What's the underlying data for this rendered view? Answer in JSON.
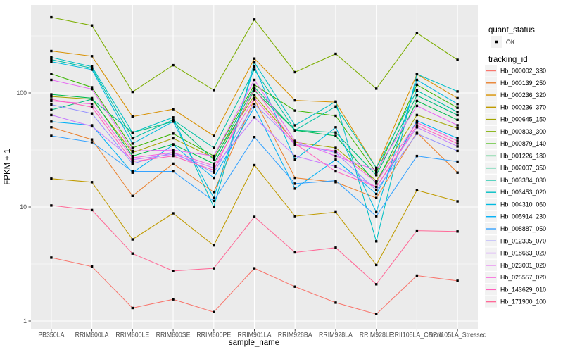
{
  "figure": {
    "panel_bg": "#EBEBEB",
    "grid_color": "#FFFFFF",
    "tick_color": "#333333",
    "tick_text_color": "#4D4D4D",
    "point_color": "#000000",
    "legend_key_bg": "#F2F2F2"
  },
  "chart_data": {
    "type": "line",
    "title": "",
    "xlabel": "sample_name",
    "ylabel": "FPKM + 1",
    "y_scale": "log10",
    "ylim": [
      0.9,
      610
    ],
    "grid": true,
    "legend_position": "right",
    "point_marker": "black-square",
    "y_tick_values": [
      1,
      10,
      100
    ],
    "y_tick_labels": [
      "1",
      "10",
      "100"
    ],
    "y_minor_values": [
      3.1623,
      31.623,
      316.23
    ],
    "categories": [
      "PB350LA",
      "RRIM600LA",
      "RRIM600LE",
      "RRIM600SE",
      "RRIM600PE",
      "RRIM901LA",
      "RRIM928BA",
      "RRIM928LA",
      "RRIM928LE",
      "RRII105LA_Control",
      "RRII105LA_Stressed"
    ],
    "series": [
      {
        "name": "Hb_000002_330",
        "color": "#F8766D",
        "values": [
          3.6,
          3.0,
          1.3,
          1.55,
          1.2,
          2.9,
          2.0,
          1.45,
          1.15,
          2.5,
          2.25
        ]
      },
      {
        "name": "Hb_000139_250",
        "color": "#EA8331",
        "values": [
          50,
          39,
          12.5,
          24,
          13.5,
          88,
          18,
          16.5,
          12,
          45,
          20
        ]
      },
      {
        "name": "Hb_000236_320",
        "color": "#D89000",
        "values": [
          233,
          210,
          62,
          72,
          42,
          200,
          86,
          83,
          22,
          146,
          90
        ]
      },
      {
        "name": "Hb_000236_370",
        "color": "#C09B00",
        "values": [
          17.7,
          16.5,
          5.2,
          8.8,
          4.6,
          23.3,
          8.3,
          9.0,
          3.1,
          14,
          11.2
        ]
      },
      {
        "name": "Hb_000645_150",
        "color": "#A3A500",
        "values": [
          93,
          88,
          30,
          40,
          27,
          95,
          37,
          33,
          17,
          64,
          49
        ]
      },
      {
        "name": "Hb_000803_300",
        "color": "#7CAE00",
        "values": [
          460,
          390,
          102,
          175,
          106,
          440,
          152,
          220,
          109,
          335,
          195
        ]
      },
      {
        "name": "Hb_000879_140",
        "color": "#39B600",
        "values": [
          147,
          112,
          33,
          44,
          28,
          118,
          70,
          63,
          20,
          118,
          74
        ]
      },
      {
        "name": "Hb_001226_180",
        "color": "#00BB4E",
        "values": [
          97,
          90,
          28,
          35.5,
          24,
          105,
          47,
          42,
          16,
          85,
          58
        ]
      },
      {
        "name": "Hb_002007_350",
        "color": "#00BF7D",
        "values": [
          71,
          88,
          45,
          56,
          26,
          112,
          47,
          45,
          19,
          95,
          64
        ]
      },
      {
        "name": "Hb_003384_030",
        "color": "#00C1A3",
        "values": [
          196,
          165,
          40,
          58,
          33,
          160,
          47,
          76,
          22,
          105,
          68
        ]
      },
      {
        "name": "Hb_003453_020",
        "color": "#00BFC4",
        "values": [
          205,
          170,
          45,
          61,
          10,
          185,
          52,
          84,
          5,
          146,
          103
        ]
      },
      {
        "name": "Hb_004310_060",
        "color": "#00BAE0",
        "values": [
          188,
          160,
          36,
          56,
          12,
          170,
          26,
          50,
          9,
          130,
          80
        ]
      },
      {
        "name": "Hb_005914_230",
        "color": "#00B0F6",
        "values": [
          56,
          52,
          20,
          35,
          18,
          75,
          14.5,
          26,
          13,
          57,
          40
        ]
      },
      {
        "name": "Hb_008887_050",
        "color": "#35A2FF",
        "values": [
          42,
          37,
          20.5,
          20.5,
          11.3,
          41,
          16,
          17,
          8.3,
          28,
          25
        ]
      },
      {
        "name": "Hb_012305_070",
        "color": "#9590FF",
        "values": [
          79,
          66,
          24,
          30,
          20,
          80,
          36,
          30,
          14,
          44,
          31
        ]
      },
      {
        "name": "Hb_018663_020",
        "color": "#C77CFF",
        "values": [
          64,
          51,
          26,
          29,
          22,
          61,
          28,
          22.6,
          15,
          50,
          34
        ]
      },
      {
        "name": "Hb_023001_020",
        "color": "#E76BF3",
        "values": [
          130,
          108,
          31,
          31.6,
          28,
          130,
          38,
          28,
          21,
          77,
          52
        ]
      },
      {
        "name": "Hb_025557_020",
        "color": "#FA62DB",
        "values": [
          85,
          80,
          27,
          30,
          23,
          90,
          35,
          31,
          16.5,
          55,
          38
        ]
      },
      {
        "name": "Hb_143629_010",
        "color": "#FF62BC",
        "values": [
          88,
          75,
          25,
          28,
          21,
          109,
          36,
          20.5,
          15,
          52,
          36
        ]
      },
      {
        "name": "Hb_171900_100",
        "color": "#FF6A98",
        "values": [
          10.3,
          9.4,
          3.9,
          2.75,
          2.9,
          8.2,
          4.0,
          4.4,
          2.1,
          6.2,
          6.1
        ]
      }
    ],
    "legend": {
      "quant_status": {
        "title": "quant_status",
        "items": [
          {
            "label": "OK",
            "marker": "point",
            "color": "#000000"
          }
        ]
      },
      "tracking": {
        "title": "tracking_id"
      }
    }
  }
}
